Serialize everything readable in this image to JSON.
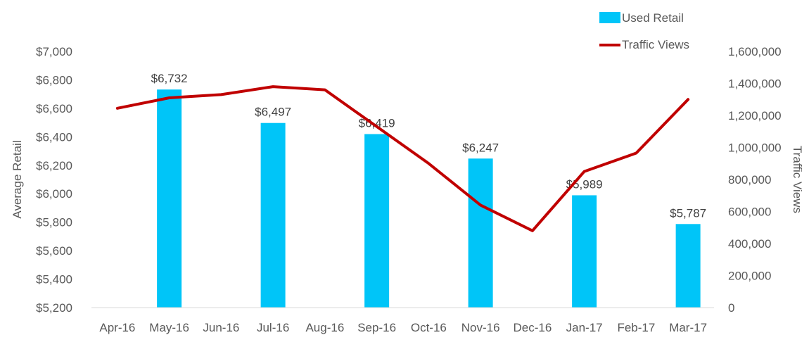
{
  "chart_data": {
    "type": "bar",
    "categories": [
      "Apr-16",
      "May-16",
      "Jun-16",
      "Jul-16",
      "Aug-16",
      "Sep-16",
      "Oct-16",
      "Nov-16",
      "Dec-16",
      "Jan-17",
      "Feb-17",
      "Mar-17"
    ],
    "series": [
      {
        "name": "Used Retail",
        "type": "bar",
        "axis": "left",
        "color": "#00C5F8",
        "values": [
          null,
          6732,
          null,
          6497,
          null,
          6419,
          null,
          6247,
          null,
          5989,
          null,
          5787
        ],
        "labels": [
          null,
          "$6,732",
          null,
          "$6,497",
          null,
          "$6,419",
          null,
          "$6,247",
          null,
          "$5,989",
          null,
          "$5,787"
        ]
      },
      {
        "name": "Traffic Views",
        "type": "line",
        "axis": "right",
        "color": "#C00000",
        "values": [
          1245000,
          1310000,
          1330000,
          1380000,
          1360000,
          1130000,
          900000,
          640000,
          480000,
          850000,
          965000,
          1300000
        ]
      }
    ],
    "xlabel": "",
    "ylabel": "Average Retail",
    "y2label": "Traffic Views",
    "ylim": [
      5200,
      7000
    ],
    "y2lim": [
      0,
      1600000
    ],
    "y_ticks": [
      "$5,200",
      "$5,400",
      "$5,600",
      "$5,800",
      "$6,000",
      "$6,200",
      "$6,400",
      "$6,600",
      "$6,800",
      "$7,000"
    ],
    "y2_ticks": [
      "0",
      "200,000",
      "400,000",
      "600,000",
      "800,000",
      "1,000,000",
      "1,200,000",
      "1,400,000",
      "1,600,000"
    ],
    "legend_position": "top-right",
    "grid": false
  }
}
